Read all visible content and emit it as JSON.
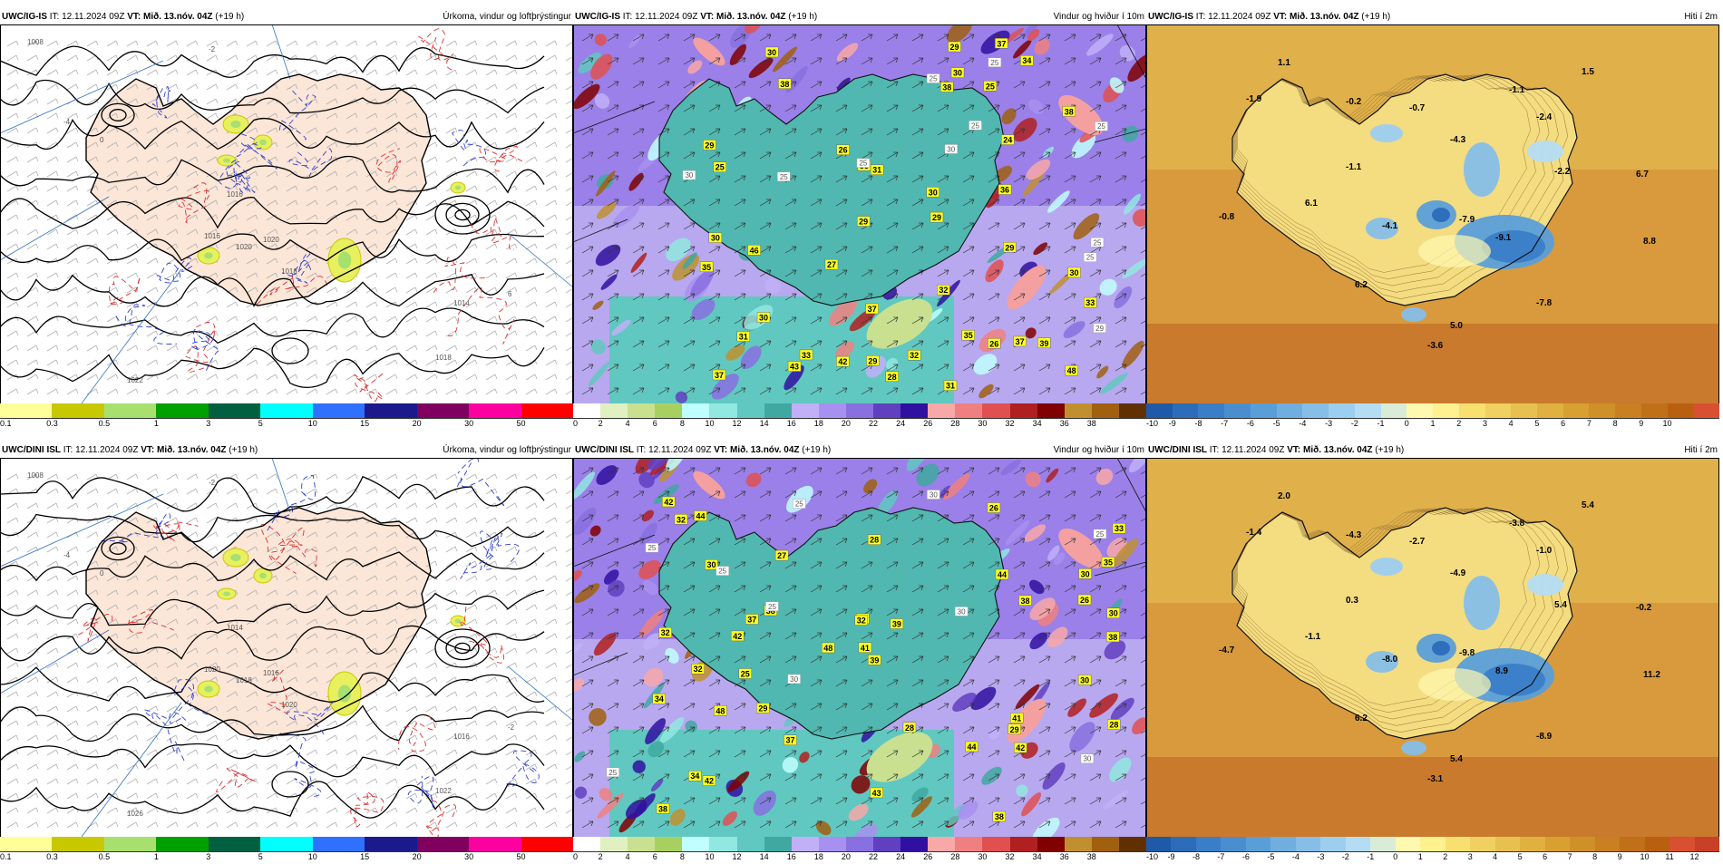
{
  "panels": [
    {
      "model": "UWC/IG-IS",
      "it_label": "IT:",
      "it_value": "12.11.2024 09Z",
      "vt_label": "VT: Mið. 13.nóv. 04Z",
      "lead": "(+19 h)",
      "title": "Úrkoma, vindur og loftþrýstingur",
      "legend_colors": [
        "#ffff99",
        "#c8c800",
        "#a8e070",
        "#00a000",
        "#006040",
        "#00ffff",
        "#3070ff",
        "#1a1a8c",
        "#800060",
        "#ff00a0",
        "#ff0000"
      ],
      "legend_ticks": [
        "0.1",
        "0.3",
        "0.5",
        "1",
        "3",
        "5",
        "10",
        "15",
        "20",
        "30",
        "50"
      ],
      "labels": [
        "1008",
        "1016",
        "1020",
        "1018",
        "1016",
        "1020",
        "1014",
        "1018",
        "1022",
        "0",
        "-4",
        "-2",
        "6"
      ]
    },
    {
      "model": "UWC/IG-IS",
      "it_label": "IT:",
      "it_value": "12.11.2024 09Z",
      "vt_label": "VT: Mið. 13.nóv. 04Z",
      "lead": "(+19 h)",
      "title": "Vindur og hviður í 10m",
      "legend_colors": [
        "#ffffff",
        "#e0f0c0",
        "#c8e090",
        "#a8d060",
        "#c0ffff",
        "#90e8e0",
        "#60c8c0",
        "#40a8a0",
        "#c0b0f8",
        "#a890f0",
        "#8870e0",
        "#6040c0",
        "#3010a0",
        "#f8a8a8",
        "#f08080",
        "#e05050",
        "#b02020",
        "#800000",
        "#c09030",
        "#a06010",
        "#603000"
      ],
      "legend_ticks": [
        "0",
        "2",
        "4",
        "6",
        "8",
        "10",
        "12",
        "14",
        "16",
        "18",
        "20",
        "22",
        "24",
        "26",
        "28",
        "30",
        "32",
        "34",
        "36",
        "38"
      ],
      "wind_labels": [
        "33",
        "29",
        "31",
        "30",
        "38",
        "26",
        "42",
        "31",
        "37",
        "33",
        "29",
        "46",
        "32",
        "43",
        "38",
        "32",
        "28",
        "35",
        "29",
        "30",
        "25",
        "27",
        "30",
        "24",
        "36",
        "37",
        "35",
        "38",
        "37",
        "30",
        "29",
        "26",
        "25",
        "34",
        "48",
        "31",
        "30",
        "30",
        "29",
        "37",
        "39",
        "33",
        "29"
      ],
      "gust_labels": [
        "29",
        "25",
        "25",
        "25",
        "25",
        "25",
        "30",
        "30",
        "25",
        "25",
        "25"
      ]
    },
    {
      "model": "UWC/IG-IS",
      "it_label": "IT:",
      "it_value": "12.11.2024 09Z",
      "vt_label": "VT: Mið. 13.nóv. 04Z",
      "lead": "(+19 h)",
      "title": "Hiti í 2m",
      "legend_colors": [
        "#1e5aa8",
        "#2c6cb8",
        "#3a7ec8",
        "#4a8ed0",
        "#5a9ed8",
        "#70aee0",
        "#86bee8",
        "#9ccef0",
        "#b4dcf4",
        "#d8ecd8",
        "#fff8b0",
        "#fff090",
        "#f8e070",
        "#f0d060",
        "#e8c050",
        "#e0b040",
        "#d8a030",
        "#d09028",
        "#c88020",
        "#c07018",
        "#b86010",
        "#d85030"
      ],
      "legend_ticks": [
        "-10",
        "-9",
        "-8",
        "-7",
        "-6",
        "-5",
        "-4",
        "-3",
        "-2",
        "-1",
        "0",
        "1",
        "2",
        "3",
        "4",
        "5",
        "6",
        "7",
        "8",
        "9",
        "10"
      ],
      "temps": [
        "1.1",
        "1.5",
        "-1.9",
        "-0.2",
        "-0.7",
        "-1.1",
        "-2.4",
        "-4.3",
        "-2.2",
        "-1.1",
        "6.7",
        "6.1",
        "-0.8",
        "-4.1",
        "-7.9",
        "-9.1",
        "8.8",
        "6.2",
        "-7.8",
        "5.0",
        "-3.6"
      ]
    },
    {
      "model": "UWC/DINI ISL",
      "it_label": "IT:",
      "it_value": "12.11.2024 09Z",
      "vt_label": "VT: Mið. 13.nóv. 04Z",
      "lead": "(+19 h)",
      "title": "Úrkoma, vindur og loftþrýstingur",
      "legend_colors": [
        "#ffff99",
        "#c8c800",
        "#a8e070",
        "#00a000",
        "#006040",
        "#00ffff",
        "#3070ff",
        "#1a1a8c",
        "#800060",
        "#ff00a0",
        "#ff0000"
      ],
      "legend_ticks": [
        "0.1",
        "0.3",
        "0.5",
        "1",
        "3",
        "5",
        "10",
        "15",
        "20",
        "30",
        "50"
      ],
      "labels": [
        "1008",
        "1014",
        "1016",
        "1020",
        "1020",
        "1018",
        "1016",
        "1022",
        "1026",
        "0",
        "-4",
        "-2",
        "-2"
      ]
    },
    {
      "model": "UWC/DINI ISL",
      "it_label": "IT:",
      "it_value": "12.11.2024 09Z",
      "vt_label": "VT: Mið. 13.nóv. 04Z",
      "lead": "(+19 h)",
      "title": "Vindur og hviður í 10m",
      "legend_colors": [
        "#ffffff",
        "#e0f0c0",
        "#c8e090",
        "#a8d060",
        "#c0ffff",
        "#90e8e0",
        "#60c8c0",
        "#40a8a0",
        "#c0b0f8",
        "#a890f0",
        "#8870e0",
        "#6040c0",
        "#3010a0",
        "#f8a8a8",
        "#f08080",
        "#e05050",
        "#b02020",
        "#800000",
        "#c09030",
        "#a06010",
        "#603000"
      ],
      "legend_ticks": [
        "0",
        "2",
        "4",
        "6",
        "8",
        "10",
        "12",
        "14",
        "16",
        "18",
        "20",
        "22",
        "24",
        "26",
        "28",
        "30",
        "32",
        "34",
        "36",
        "38"
      ],
      "wind_labels": [
        "36",
        "33",
        "28",
        "29",
        "42",
        "43",
        "30",
        "37",
        "39",
        "41",
        "32",
        "38",
        "28",
        "42",
        "29",
        "44",
        "44",
        "38",
        "48",
        "42",
        "32",
        "41",
        "32",
        "38",
        "27",
        "28",
        "26",
        "37",
        "32",
        "42",
        "30",
        "38",
        "44",
        "26",
        "25",
        "34",
        "35",
        "30",
        "38",
        "30",
        "39",
        "48",
        "34"
      ],
      "gust_labels": [
        "25",
        "25",
        "30",
        "30",
        "25",
        "25",
        "30",
        "25",
        "30",
        "25"
      ]
    },
    {
      "model": "UWC/DINI ISL",
      "it_label": "IT:",
      "it_value": "12.11.2024 09Z",
      "vt_label": "VT: Mið. 13.nóv. 04Z",
      "lead": "(+19 h)",
      "title": "Hiti í 2m",
      "legend_colors": [
        "#1e5aa8",
        "#2c6cb8",
        "#3a7ec8",
        "#4a8ed0",
        "#5a9ed8",
        "#70aee0",
        "#86bee8",
        "#9ccef0",
        "#b4dcf4",
        "#d8ecd8",
        "#fff8b0",
        "#fff090",
        "#f8e070",
        "#f0d060",
        "#e8c050",
        "#e0b040",
        "#d8a030",
        "#d09028",
        "#c88020",
        "#c07018",
        "#b86010",
        "#d85030",
        "#c84028"
      ],
      "legend_ticks": [
        "-10",
        "-9",
        "-8",
        "-7",
        "-6",
        "-5",
        "-4",
        "-3",
        "-2",
        "-1",
        "0",
        "1",
        "2",
        "3",
        "4",
        "5",
        "6",
        "7",
        "8",
        "9",
        "10",
        "11",
        "12"
      ],
      "temps": [
        "2.0",
        "5.4",
        "-1.4",
        "-4.3",
        "-2.7",
        "-3.8",
        "-1.0",
        "-4.9",
        "5.4",
        "0.3",
        "-0.2",
        "-1.1",
        "-4.7",
        "-8.0",
        "-9.8",
        "8.9",
        "11.2",
        "6.2",
        "-8.9",
        "5.4",
        "-3.1"
      ]
    }
  ]
}
